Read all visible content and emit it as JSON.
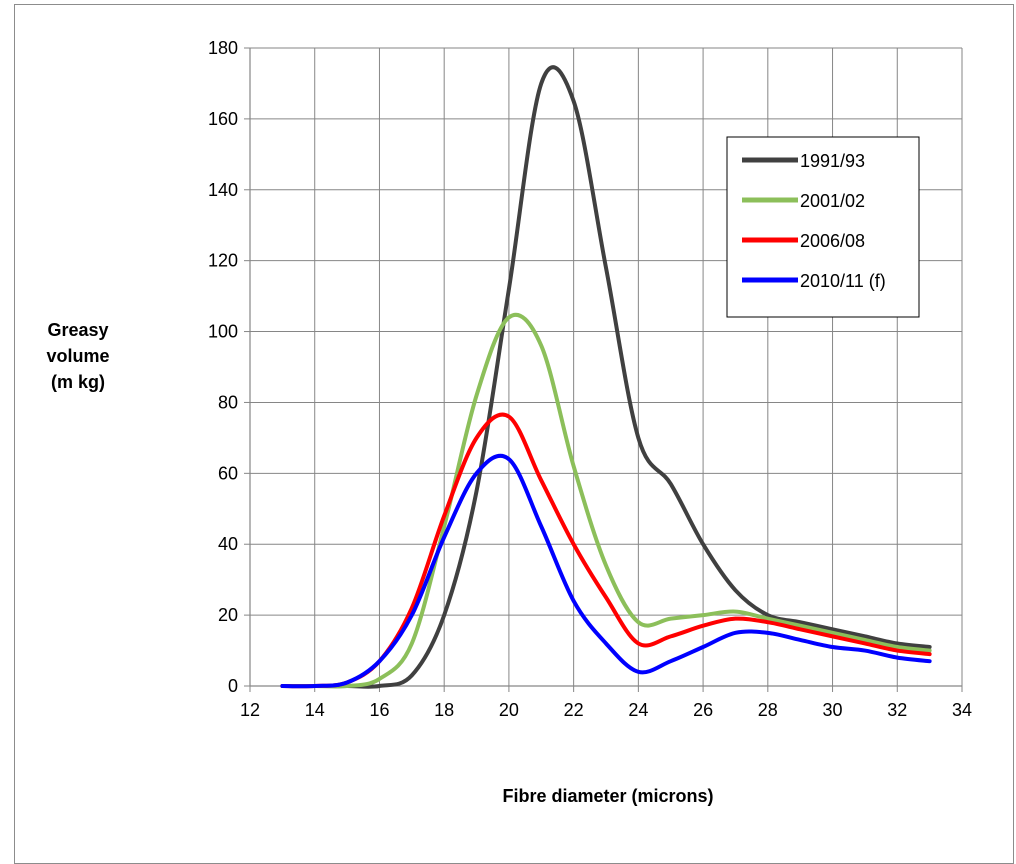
{
  "chart_data": {
    "type": "line",
    "title": "",
    "xlabel": "Fibre diameter  (microns)",
    "ylabel_lines": [
      "Greasy",
      "volume",
      "(m kg)"
    ],
    "xlim": [
      12,
      34
    ],
    "ylim": [
      0,
      180
    ],
    "xticks": [
      12,
      14,
      16,
      18,
      20,
      22,
      24,
      26,
      28,
      30,
      32,
      34
    ],
    "yticks": [
      0,
      20,
      40,
      60,
      80,
      100,
      120,
      140,
      160,
      180
    ],
    "grid": true,
    "legend_position": "top-right",
    "series": [
      {
        "name": "1991/93",
        "color": "#404040",
        "x": [
          13,
          14,
          15,
          16,
          17,
          18,
          19,
          20,
          21,
          22,
          23,
          24,
          25,
          26,
          27,
          28,
          29,
          30,
          31,
          32,
          33
        ],
        "y": [
          0,
          0,
          0,
          0,
          3,
          20,
          55,
          112,
          170,
          165,
          118,
          70,
          57,
          40,
          27,
          20,
          18,
          16,
          14,
          12,
          11
        ]
      },
      {
        "name": "2001/02",
        "color": "#8cbf5a",
        "x": [
          13,
          14,
          15,
          16,
          17,
          18,
          19,
          20,
          21,
          22,
          23,
          24,
          25,
          26,
          27,
          28,
          29,
          30,
          31,
          32,
          33
        ],
        "y": [
          0,
          0,
          0,
          2,
          12,
          45,
          82,
          104,
          96,
          62,
          34,
          18,
          19,
          20,
          21,
          19,
          17,
          15,
          13,
          11,
          10
        ]
      },
      {
        "name": "2006/08",
        "color": "#ff0000",
        "x": [
          13,
          14,
          15,
          16,
          17,
          18,
          19,
          20,
          21,
          22,
          23,
          24,
          25,
          26,
          27,
          28,
          29,
          30,
          31,
          32,
          33
        ],
        "y": [
          0,
          0,
          1,
          7,
          22,
          48,
          70,
          76,
          58,
          40,
          25,
          12,
          14,
          17,
          19,
          18,
          16,
          14,
          12,
          10,
          9
        ]
      },
      {
        "name": "2010/11  (f)",
        "color": "#0000ff",
        "x": [
          13,
          14,
          15,
          16,
          17,
          18,
          19,
          20,
          21,
          22,
          23,
          24,
          25,
          26,
          27,
          28,
          29,
          30,
          31,
          32,
          33
        ],
        "y": [
          0,
          0,
          1,
          7,
          20,
          42,
          60,
          64,
          45,
          24,
          12,
          4,
          7,
          11,
          15,
          15,
          13,
          11,
          10,
          8,
          7
        ]
      }
    ]
  }
}
